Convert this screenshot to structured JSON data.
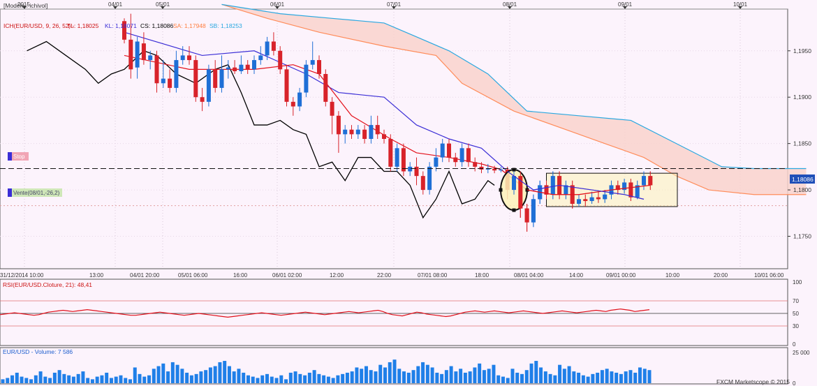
{
  "app": {
    "watermark": "FXCM Marketscope © 2015"
  },
  "header": {
    "model": "[Modèle : ichivol]",
    "ich_label": "ICH(EUR/USD, 9, 26, 52) -",
    "tl": "TL: 1,18025",
    "kl": "KL: 1,18071",
    "cs": "CS: 1,18086",
    "sa": "SA: 1,17948",
    "sb": "SB: 1,18253"
  },
  "top_axis": [
    "2015",
    "04/01",
    "05/01",
    "06/01",
    "07/01",
    "08/01",
    "09/01",
    "10/01"
  ],
  "bottom_axis": [
    "31/12/2014 10:00",
    "13:00",
    "04/01 20:00",
    "05/01 06:00",
    "16:00",
    "06/01 02:00",
    "12:00",
    "22:00",
    "07/01 08:00",
    "18:00",
    "08/01 04:00",
    "14:00",
    "09/01 00:00",
    "10:00",
    "20:00",
    "10/01 06:00"
  ],
  "orders": {
    "stop": "Stop",
    "entry": "Vente(08/01,-26,2)",
    "current_price": "1,18086"
  },
  "rsi_panel": {
    "title": "RSI(EUR/USD.Cloture, 21): 48,41",
    "levels": [
      "100",
      "70",
      "50",
      "30",
      "0"
    ]
  },
  "volume_panel": {
    "title": "EUR/USD - Volume: 7 586",
    "levels": [
      "25 000",
      "0"
    ]
  },
  "colors": {
    "background": "#fcf3fc",
    "bull": "#1f6fd6",
    "bear": "#d8232a",
    "tenkan": "#e3101a",
    "kijun": "#3b2ed6",
    "chikou": "#000000",
    "senkou_a": "#ff8c5a",
    "senkou_b": "#29a8e0",
    "cloud": "#f9d2cc",
    "rsi": "#e0101a",
    "volume": "#1f7fe8",
    "highlight": "#fbf2b8"
  },
  "chart_data": {
    "type": "candlestick",
    "instrument": "EUR/USD",
    "ylim": [
      1.1715,
      1.1995
    ],
    "y_ticks": [
      1.175,
      1.18,
      1.185,
      1.19,
      1.195
    ],
    "y_tick_labels": [
      "1,1750",
      "1,1800",
      "1,1850",
      "1,1900",
      "1,1950"
    ],
    "stop_level": 1.1823,
    "entry_level": 1.1783,
    "candles": [
      [
        1.1982,
        1.1962,
        1.1985,
        1.1958
      ],
      [
        1.1962,
        1.193,
        1.199,
        1.192
      ],
      [
        1.1932,
        1.196,
        1.1965,
        1.192
      ],
      [
        1.1958,
        1.194,
        1.197,
        1.1935
      ],
      [
        1.194,
        1.1945,
        1.195,
        1.193
      ],
      [
        1.1945,
        1.1915,
        1.195,
        1.1905
      ],
      [
        1.1915,
        1.192,
        1.194,
        1.191
      ],
      [
        1.192,
        1.191,
        1.193,
        1.1905
      ],
      [
        1.191,
        1.194,
        1.195,
        1.1905
      ],
      [
        1.194,
        1.1945,
        1.1955,
        1.1935
      ],
      [
        1.1945,
        1.194,
        1.1955,
        1.1935
      ],
      [
        1.194,
        1.19,
        1.1945,
        1.1895
      ],
      [
        1.19,
        1.1895,
        1.191,
        1.1885
      ],
      [
        1.1895,
        1.193,
        1.1935,
        1.189
      ],
      [
        1.193,
        1.191,
        1.194,
        1.1905
      ],
      [
        1.191,
        1.193,
        1.1945,
        1.1905
      ],
      [
        1.193,
        1.1932,
        1.194,
        1.192
      ],
      [
        1.1932,
        1.1928,
        1.194,
        1.1925
      ],
      [
        1.1928,
        1.1935,
        1.1945,
        1.1925
      ],
      [
        1.1935,
        1.193,
        1.194,
        1.1925
      ],
      [
        1.193,
        1.194,
        1.1945,
        1.1925
      ],
      [
        1.194,
        1.1945,
        1.1955,
        1.1935
      ],
      [
        1.1945,
        1.196,
        1.1965,
        1.194
      ],
      [
        1.196,
        1.195,
        1.197,
        1.1945
      ],
      [
        1.195,
        1.193,
        1.1955,
        1.1925
      ],
      [
        1.193,
        1.1895,
        1.1935,
        1.189
      ],
      [
        1.1895,
        1.189,
        1.19,
        1.188
      ],
      [
        1.189,
        1.1905,
        1.191,
        1.1885
      ],
      [
        1.1905,
        1.1935,
        1.194,
        1.19
      ],
      [
        1.1935,
        1.194,
        1.196,
        1.193
      ],
      [
        1.194,
        1.1925,
        1.1945,
        1.192
      ],
      [
        1.1925,
        1.1895,
        1.193,
        1.189
      ],
      [
        1.1895,
        1.188,
        1.19,
        1.186
      ],
      [
        1.188,
        1.186,
        1.1885,
        1.184
      ],
      [
        1.186,
        1.1865,
        1.187,
        1.185
      ],
      [
        1.1865,
        1.186,
        1.187,
        1.1855
      ],
      [
        1.186,
        1.1865,
        1.187,
        1.1855
      ],
      [
        1.1865,
        1.1855,
        1.187,
        1.185
      ],
      [
        1.1855,
        1.187,
        1.188,
        1.185
      ],
      [
        1.187,
        1.186,
        1.188,
        1.1855
      ],
      [
        1.186,
        1.1855,
        1.1865,
        1.185
      ],
      [
        1.1855,
        1.1825,
        1.186,
        1.182
      ],
      [
        1.1825,
        1.1845,
        1.185,
        1.182
      ],
      [
        1.1845,
        1.182,
        1.185,
        1.1815
      ],
      [
        1.182,
        1.1825,
        1.183,
        1.1815
      ],
      [
        1.1825,
        1.1815,
        1.1835,
        1.1805
      ],
      [
        1.1815,
        1.18,
        1.182,
        1.1795
      ],
      [
        1.18,
        1.1825,
        1.183,
        1.1795
      ],
      [
        1.1825,
        1.1835,
        1.1845,
        1.182
      ],
      [
        1.1835,
        1.185,
        1.1855,
        1.183
      ],
      [
        1.185,
        1.1835,
        1.1855,
        1.183
      ],
      [
        1.1835,
        1.183,
        1.184,
        1.1825
      ],
      [
        1.183,
        1.1845,
        1.185,
        1.1825
      ],
      [
        1.1845,
        1.183,
        1.185,
        1.1825
      ],
      [
        1.183,
        1.1825,
        1.1835,
        1.182
      ],
      [
        1.1825,
        1.1822,
        1.183,
        1.1818
      ],
      [
        1.1822,
        1.1823,
        1.1828,
        1.1818
      ],
      [
        1.1823,
        1.1821,
        1.1826,
        1.1818
      ],
      [
        1.1821,
        1.1822,
        1.1825,
        1.1819
      ],
      [
        1.1822,
        1.18,
        1.1825,
        1.179
      ],
      [
        1.18,
        1.1815,
        1.182,
        1.1795
      ],
      [
        1.1815,
        1.178,
        1.182,
        1.177
      ],
      [
        1.178,
        1.1765,
        1.1785,
        1.1755
      ],
      [
        1.1765,
        1.179,
        1.1795,
        1.176
      ],
      [
        1.179,
        1.1805,
        1.181,
        1.1785
      ],
      [
        1.1805,
        1.1795,
        1.181,
        1.179
      ],
      [
        1.1795,
        1.1815,
        1.182,
        1.179
      ],
      [
        1.1815,
        1.1795,
        1.182,
        1.179
      ],
      [
        1.1795,
        1.1805,
        1.181,
        1.179
      ],
      [
        1.1805,
        1.1785,
        1.181,
        1.178
      ],
      [
        1.1785,
        1.179,
        1.1795,
        1.1782
      ],
      [
        1.179,
        1.1788,
        1.1795,
        1.1782
      ],
      [
        1.1788,
        1.1792,
        1.1798,
        1.1785
      ],
      [
        1.1792,
        1.179,
        1.1798,
        1.1786
      ],
      [
        1.179,
        1.1795,
        1.18,
        1.1786
      ],
      [
        1.1795,
        1.1805,
        1.181,
        1.179
      ],
      [
        1.1805,
        1.18,
        1.181,
        1.1795
      ],
      [
        1.18,
        1.1808,
        1.1812,
        1.1796
      ],
      [
        1.1808,
        1.1792,
        1.1812,
        1.1788
      ],
      [
        1.1792,
        1.1805,
        1.181,
        1.179
      ],
      [
        1.1805,
        1.1815,
        1.182,
        1.18
      ],
      [
        1.1815,
        1.1805,
        1.182,
        1.18
      ]
    ],
    "tenkan": [
      [
        0,
        1.1945
      ],
      [
        10,
        1.193
      ],
      [
        20,
        1.193
      ],
      [
        26,
        1.1935
      ],
      [
        30,
        1.1925
      ],
      [
        35,
        1.188
      ],
      [
        41,
        1.1855
      ],
      [
        45,
        1.184
      ],
      [
        50,
        1.1835
      ],
      [
        55,
        1.1828
      ],
      [
        58,
        1.1822
      ],
      [
        62,
        1.18
      ],
      [
        66,
        1.1795
      ],
      [
        70,
        1.1795
      ],
      [
        75,
        1.18
      ],
      [
        81,
        1.1805
      ]
    ],
    "kijun": [
      [
        0,
        1.197
      ],
      [
        12,
        1.1945
      ],
      [
        20,
        1.195
      ],
      [
        28,
        1.1925
      ],
      [
        33,
        1.1905
      ],
      [
        40,
        1.19
      ],
      [
        45,
        1.187
      ],
      [
        50,
        1.1855
      ],
      [
        55,
        1.1845
      ],
      [
        59,
        1.182
      ],
      [
        63,
        1.18
      ],
      [
        67,
        1.1805
      ],
      [
        72,
        1.18
      ],
      [
        77,
        1.1795
      ],
      [
        80,
        1.179
      ]
    ],
    "chikou": [
      [
        -15,
        1.195
      ],
      [
        -12,
        1.196
      ],
      [
        -9,
        1.1945
      ],
      [
        -6,
        1.193
      ],
      [
        -4,
        1.1915
      ],
      [
        -2,
        1.1925
      ],
      [
        0,
        1.193
      ],
      [
        3,
        1.195
      ],
      [
        5,
        1.1945
      ],
      [
        8,
        1.1925
      ],
      [
        11,
        1.1915
      ],
      [
        14,
        1.193
      ],
      [
        16,
        1.1935
      ],
      [
        18,
        1.1905
      ],
      [
        20,
        1.187
      ],
      [
        22,
        1.187
      ],
      [
        24,
        1.1875
      ],
      [
        26,
        1.1865
      ],
      [
        28,
        1.186
      ],
      [
        30,
        1.1825
      ],
      [
        32,
        1.183
      ],
      [
        34,
        1.181
      ],
      [
        36,
        1.1835
      ],
      [
        38,
        1.1835
      ],
      [
        40,
        1.182
      ],
      [
        42,
        1.182
      ],
      [
        44,
        1.1805
      ],
      [
        46,
        1.177
      ],
      [
        48,
        1.179
      ],
      [
        50,
        1.182
      ],
      [
        52,
        1.1785
      ],
      [
        54,
        1.179
      ],
      [
        56,
        1.181
      ],
      [
        57,
        1.1805
      ]
    ],
    "senkou_a": [
      [
        15,
        1.2
      ],
      [
        22,
        1.1985
      ],
      [
        30,
        1.197
      ],
      [
        40,
        1.1955
      ],
      [
        48,
        1.1945
      ],
      [
        52,
        1.1915
      ],
      [
        60,
        1.1885
      ],
      [
        68,
        1.1865
      ],
      [
        74,
        1.185
      ],
      [
        80,
        1.1835
      ],
      [
        85,
        1.1815
      ],
      [
        90,
        1.18
      ],
      [
        97,
        1.1795
      ],
      [
        105,
        1.1795
      ]
    ],
    "senkou_b": [
      [
        15,
        1.2
      ],
      [
        24,
        1.199
      ],
      [
        32,
        1.1985
      ],
      [
        40,
        1.198
      ],
      [
        45,
        1.1965
      ],
      [
        50,
        1.195
      ],
      [
        56,
        1.1925
      ],
      [
        62,
        1.1885
      ],
      [
        70,
        1.188
      ],
      [
        78,
        1.1875
      ],
      [
        85,
        1.185
      ],
      [
        92,
        1.1825
      ],
      [
        97,
        1.1823
      ],
      [
        105,
        1.1823
      ]
    ],
    "rsi": [
      48,
      49,
      50,
      51,
      50,
      49,
      48,
      47,
      48,
      50,
      52,
      53,
      54,
      55,
      54,
      53,
      54,
      55,
      56,
      55,
      54,
      53,
      52,
      51,
      50,
      49,
      48,
      47,
      47,
      48,
      49,
      50,
      51,
      52,
      51,
      50,
      49,
      48,
      47,
      48,
      49,
      50,
      49,
      48,
      47,
      46,
      45,
      44,
      45,
      46,
      47,
      48,
      49,
      50,
      51,
      50,
      49,
      48,
      47,
      48,
      49,
      50,
      51,
      52,
      51,
      50,
      49,
      48,
      49,
      50,
      51,
      52,
      53,
      52,
      51,
      52,
      53,
      54,
      55,
      53,
      50,
      48,
      47,
      46,
      48,
      50,
      52,
      51,
      49,
      48,
      47,
      46,
      45,
      46,
      48,
      50,
      52,
      53,
      54,
      53,
      52,
      53,
      54,
      53,
      52,
      51,
      52,
      53,
      54,
      53,
      52,
      51,
      50,
      51,
      52,
      53,
      54,
      53,
      52,
      51,
      52,
      53,
      54,
      55,
      54,
      53,
      55,
      56,
      57,
      56,
      55,
      53,
      54,
      55,
      56
    ],
    "volume": [
      3,
      4,
      6,
      8,
      5,
      4,
      3,
      6,
      9,
      5,
      4,
      8,
      10,
      7,
      6,
      5,
      7,
      9,
      4,
      3,
      5,
      6,
      8,
      4,
      5,
      6,
      4,
      3,
      12,
      7,
      5,
      6,
      11,
      13,
      15,
      9,
      16,
      14,
      11,
      8,
      6,
      7,
      9,
      10,
      12,
      13,
      16,
      17,
      13,
      9,
      11,
      8,
      6,
      5,
      4,
      6,
      7,
      5,
      4,
      6,
      3,
      8,
      9,
      7,
      6,
      8,
      10,
      7,
      6,
      5,
      4,
      6,
      7,
      8,
      9,
      12,
      11,
      13,
      10,
      9,
      14,
      12,
      16,
      18,
      11,
      9,
      8,
      10,
      13,
      16,
      14,
      12,
      8,
      7,
      10,
      13,
      9,
      11,
      8,
      9,
      12,
      15,
      10,
      11,
      14,
      6,
      5,
      4,
      11,
      8,
      7,
      10,
      15,
      17,
      12,
      9,
      7,
      6,
      14,
      11,
      13,
      9,
      8,
      6,
      5,
      7,
      8,
      10,
      11,
      9,
      8,
      7,
      9,
      10,
      8,
      12,
      11,
      10
    ]
  }
}
